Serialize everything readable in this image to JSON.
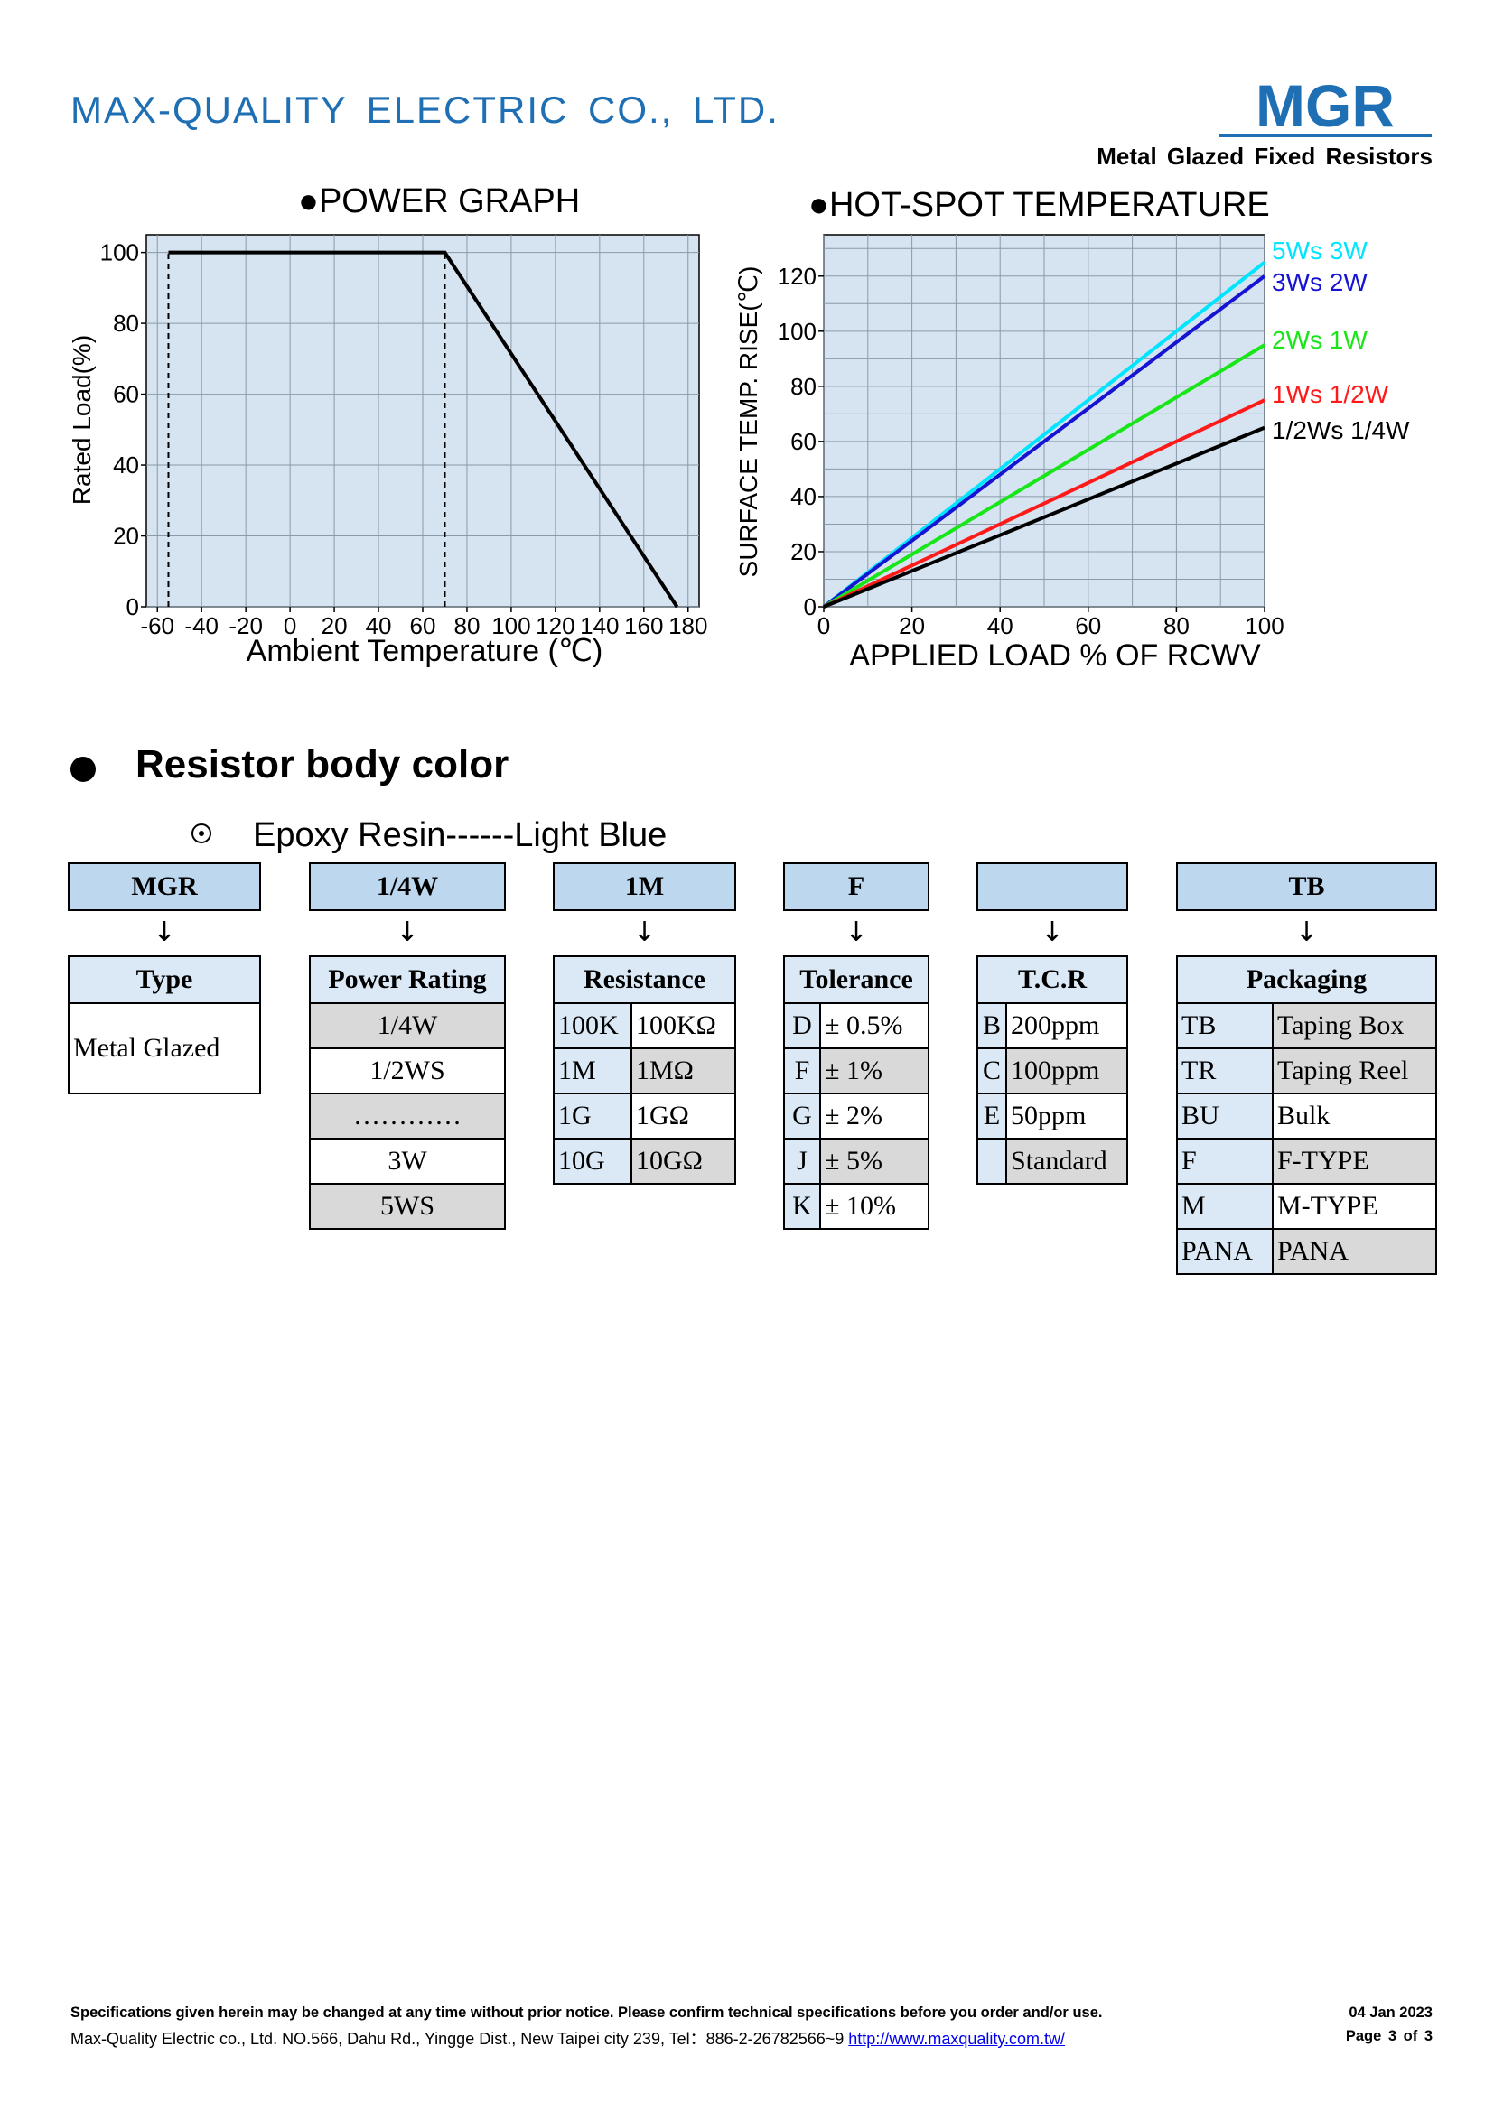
{
  "header": {
    "company": "MAX-QUALITY  ELECTRIC  CO.,  LTD.",
    "logo_text": "MGR",
    "subtitle": "Metal  Glazed  Fixed  Resistors",
    "brand_color": "#1f6fb4"
  },
  "power_graph": {
    "title": "●POWER GRAPH",
    "chart_data": {
      "type": "line",
      "title": "●POWER GRAPH",
      "xlabel": "Ambient Temperature (℃)",
      "ylabel": "Rated Load(%)",
      "xlim": [
        -65,
        185
      ],
      "ylim": [
        0,
        105
      ],
      "x_ticks": [
        "-60",
        "-40",
        "-20",
        "0",
        "20",
        "40",
        "60",
        "80",
        "100",
        "120",
        "140",
        "160",
        "180"
      ],
      "y_ticks": [
        "0",
        "20",
        "40",
        "60",
        "80",
        "100"
      ],
      "grid": true,
      "background": "#d6e3f0",
      "series": [
        {
          "x": [
            -55,
            70,
            175
          ],
          "y": [
            100,
            100,
            0
          ],
          "color": "#000000"
        }
      ],
      "reference_lines": [
        {
          "x": -55,
          "from": 0,
          "to": 100,
          "style": "dashed"
        },
        {
          "x": 70,
          "from": 0,
          "to": 100,
          "style": "dashed"
        }
      ]
    }
  },
  "hotspot_graph": {
    "title": "●HOT-SPOT TEMPERATURE",
    "chart_data": {
      "type": "line",
      "title": "●HOT-SPOT TEMPERATURE",
      "xlabel": "APPLIED LOAD % OF RCWV",
      "ylabel": "SURFACE TEMP. RISE(℃)",
      "xlim": [
        0,
        100
      ],
      "ylim": [
        0,
        135
      ],
      "x_ticks": [
        "0",
        "20",
        "40",
        "60",
        "80",
        "100"
      ],
      "y_ticks": [
        "0",
        "20",
        "40",
        "60",
        "80",
        "100",
        "120"
      ],
      "grid": true,
      "background": "#d6e3f0",
      "legend_position": "right",
      "series": [
        {
          "name": "5Ws 3W",
          "x": [
            0,
            100
          ],
          "y": [
            0,
            125
          ],
          "color": "#00e5ff"
        },
        {
          "name": "3Ws 2W",
          "x": [
            0,
            100
          ],
          "y": [
            0,
            120
          ],
          "color": "#1414d2"
        },
        {
          "name": "2Ws 1W",
          "x": [
            0,
            100
          ],
          "y": [
            0,
            95
          ],
          "color": "#19e619"
        },
        {
          "name": "1Ws 1/2W",
          "x": [
            0,
            100
          ],
          "y": [
            0,
            75
          ],
          "color": "#ff1a1a"
        },
        {
          "name": "1/2Ws 1/4W",
          "x": [
            0,
            100
          ],
          "y": [
            0,
            65
          ],
          "color": "#000000"
        }
      ]
    }
  },
  "body_color": {
    "title": "Resistor body color",
    "epoxy": "Epoxy Resin------Light Blue"
  },
  "part_code": {
    "arrow": "↓",
    "codes": [
      "MGR",
      "1/4W",
      "1M",
      "F",
      "",
      "TB"
    ],
    "type": {
      "header": "Type",
      "value": "Metal Glazed"
    },
    "power_rating": {
      "header": "Power Rating",
      "rows": [
        "1/4W",
        "1/2WS",
        "…………",
        "3W",
        "5WS"
      ]
    },
    "resistance": {
      "header": "Resistance",
      "rows": [
        [
          "100K",
          "100KΩ"
        ],
        [
          "1M",
          "1MΩ"
        ],
        [
          "1G",
          "1GΩ"
        ],
        [
          "10G",
          "10GΩ"
        ]
      ]
    },
    "tolerance": {
      "header": "Tolerance",
      "rows": [
        [
          "D",
          "± 0.5%"
        ],
        [
          "F",
          "± 1%"
        ],
        [
          "G",
          "± 2%"
        ],
        [
          "J",
          "± 5%"
        ],
        [
          "K",
          "± 10%"
        ]
      ]
    },
    "tcr": {
      "header": "T.C.R",
      "rows": [
        [
          "B",
          "200ppm"
        ],
        [
          "C",
          "100ppm"
        ],
        [
          "E",
          "50ppm"
        ],
        [
          "",
          "Standard"
        ]
      ]
    },
    "packaging": {
      "header": "Packaging",
      "rows": [
        [
          "TB",
          "Taping Box"
        ],
        [
          "TR",
          "Taping Reel"
        ],
        [
          "BU",
          "Bulk"
        ],
        [
          "F",
          "F-TYPE"
        ],
        [
          "M",
          "M-TYPE"
        ],
        [
          "PANA",
          "PANA"
        ]
      ]
    }
  },
  "footer": {
    "notice": "Specifications given herein may be changed at any time without prior notice. Please confirm technical specifications before you order and/or use.",
    "date": "04 Jan 2023",
    "address": "Max-Quality Electric co., Ltd. NO.566, Dahu Rd., Yingge Dist., New Taipei city 239, Tel：886-2-26782566~9 ",
    "url": "http://www.maxquality.com.tw/",
    "page": "Page  3  of  3"
  }
}
